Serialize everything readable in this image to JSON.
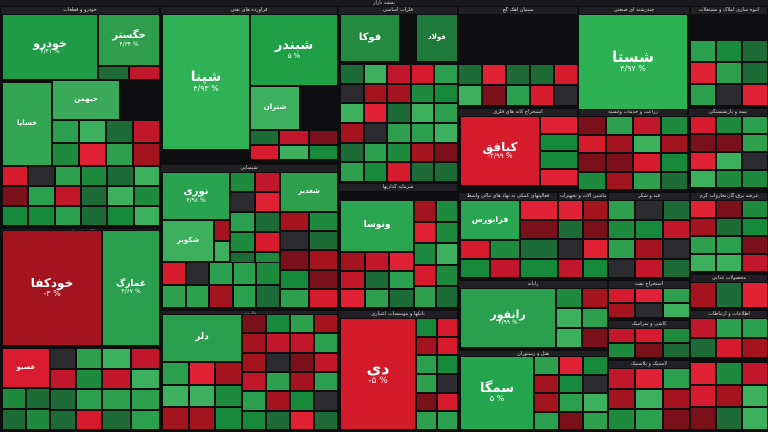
{
  "header": {
    "title": "نقشه بازار"
  },
  "chart_data": {
    "type": "treemap",
    "sectors": [
      {
        "name": "خودرو و قطعات"
      },
      {
        "name": "فرآورده های نفتی"
      },
      {
        "name": "فلزات اساسی"
      },
      {
        "name": "سیمان آهک گچ"
      },
      {
        "name": "چندرشته ای صنعتی"
      },
      {
        "name": "انبوه سازی املاک و مستغلات"
      },
      {
        "name": "استخراج کانه های فلزی"
      },
      {
        "name": "زراعت و خدمات وابسته"
      },
      {
        "name": "بیمه و بازنشستگی"
      },
      {
        "name": "سرمایه گذاریها"
      },
      {
        "name": "شیمیایی"
      },
      {
        "name": "فعالیتهای کمکی به نهاد های مالی واسط"
      },
      {
        "name": "ماشین آلات و تجهیزات"
      },
      {
        "name": "قند و شکر"
      },
      {
        "name": "عرضه برق،گاز،بخاروآب گرم"
      },
      {
        "name": "بانکها و موسسات اعتباری"
      },
      {
        "name": "رایانه"
      },
      {
        "name": "دارویی"
      },
      {
        "name": "هتل و رستوران"
      },
      {
        "name": "کاشی و سرامیک"
      },
      {
        "name": "لاستیک و پلاستیک"
      },
      {
        "name": "کانی غیرفلزی"
      },
      {
        "name": "محصولات غذایی"
      },
      {
        "name": "استخراج نفت"
      },
      {
        "name": "اطلاعات و ارتباطات"
      },
      {
        "name": "حمل و نقل"
      }
    ],
    "tiles": [
      {
        "name": "خودرو",
        "change": "۴/۴۱ %"
      },
      {
        "name": "خگستر",
        "change": "۴/۳۴ %"
      },
      {
        "name": "خساپا",
        "change": ""
      },
      {
        "name": "خبهمن",
        "change": ""
      },
      {
        "name": "خودکفا",
        "change": "-۳ %"
      },
      {
        "name": "غمارگ",
        "change": "۴/۶۷ %"
      },
      {
        "name": "شپنا",
        "change": "۴/۹۳ %"
      },
      {
        "name": "شبندر",
        "change": "۵ %"
      },
      {
        "name": "شتران",
        "change": ""
      },
      {
        "name": "فولاد",
        "change": ""
      },
      {
        "name": "فوکا",
        "change": ""
      },
      {
        "name": "شستا",
        "change": "۴/۹۷ %"
      },
      {
        "name": "کیافق",
        "change": "-۴/۹۹ %"
      },
      {
        "name": "نوری",
        "change": "۴/۹۸ %"
      },
      {
        "name": "شغدیر",
        "change": ""
      },
      {
        "name": "شکویر",
        "change": ""
      },
      {
        "name": "ونوسا",
        "change": ""
      },
      {
        "name": "فرابورس",
        "change": ""
      },
      {
        "name": "دی",
        "change": "-۵ %"
      },
      {
        "name": "رانفور",
        "change": "۴/۹۹ %"
      },
      {
        "name": "سمگا",
        "change": "۵ %"
      },
      {
        "name": "دلر",
        "change": ""
      },
      {
        "name": "عصبو",
        "change": ""
      }
    ]
  }
}
